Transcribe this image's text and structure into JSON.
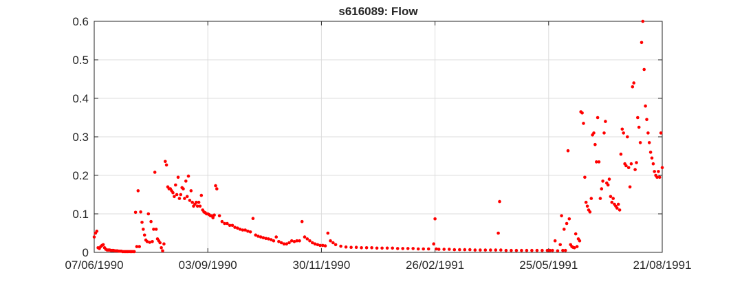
{
  "chart_data": {
    "type": "scatter",
    "title": "s616089: Flow",
    "xlabel": "",
    "ylabel": "",
    "x_axis": "date",
    "xlim": [
      "07/06/1990",
      "21/08/1991"
    ],
    "ylim": [
      0,
      0.6
    ],
    "x_ticks": [
      "07/06/1990",
      "03/09/1990",
      "30/11/1990",
      "26/02/1991",
      "25/05/1991",
      "21/08/1991"
    ],
    "y_ticks": [
      "0",
      "0.1",
      "0.2",
      "0.3",
      "0.4",
      "0.5",
      "0.6"
    ],
    "grid": true,
    "marker_color": "#ff0000",
    "series": [
      {
        "x": [
          "07/06/1990",
          "08/06/1990",
          "09/06/1990",
          "10/06/1990",
          "11/06/1990",
          "12/06/1990",
          "13/06/1990",
          "14/06/1990",
          "15/06/1990",
          "16/06/1990",
          "17/06/1990",
          "18/06/1990",
          "19/06/1990",
          "20/06/1990",
          "21/06/1990",
          "22/06/1990",
          "23/06/1990",
          "24/06/1990",
          "25/06/1990",
          "26/06/1990",
          "27/06/1990",
          "28/06/1990",
          "29/06/1990",
          "30/06/1990",
          "01/07/1990",
          "02/07/1990",
          "03/07/1990",
          "04/07/1990",
          "05/07/1990",
          "06/07/1990",
          "07/07/1990",
          "08/07/1990",
          "09/07/1990",
          "10/07/1990",
          "11/07/1990",
          "12/07/1990",
          "13/07/1990",
          "14/07/1990",
          "15/07/1990",
          "16/07/1990",
          "17/07/1990",
          "18/07/1990",
          "19/07/1990",
          "20/07/1990",
          "21/07/1990",
          "22/07/1990",
          "23/07/1990",
          "24/07/1990",
          "25/07/1990",
          "26/07/1990",
          "27/07/1990",
          "28/07/1990",
          "29/07/1990",
          "30/07/1990",
          "31/07/1990",
          "01/08/1990",
          "02/08/1990",
          "03/08/1990",
          "04/08/1990",
          "05/08/1990",
          "06/08/1990",
          "07/08/1990",
          "08/08/1990",
          "09/08/1990",
          "10/08/1990",
          "11/08/1990",
          "12/08/1990",
          "13/08/1990",
          "14/08/1990",
          "15/08/1990",
          "16/08/1990",
          "17/08/1990",
          "18/08/1990",
          "19/08/1990",
          "20/08/1990",
          "21/08/1990",
          "22/08/1990",
          "23/08/1990",
          "24/08/1990",
          "25/08/1990",
          "26/08/1990",
          "27/08/1990",
          "28/08/1990",
          "29/08/1990",
          "30/08/1990",
          "31/08/1990",
          "01/09/1990",
          "02/09/1990",
          "03/09/1990",
          "04/09/1990",
          "05/09/1990",
          "06/09/1990",
          "07/09/1990",
          "08/09/1990",
          "09/09/1990",
          "10/09/1990",
          "12/09/1990",
          "14/09/1990",
          "16/09/1990",
          "18/09/1990",
          "20/09/1990",
          "22/09/1990",
          "24/09/1990",
          "26/09/1990",
          "28/09/1990",
          "30/09/1990",
          "02/10/1990",
          "04/10/1990",
          "06/10/1990",
          "08/10/1990",
          "10/10/1990",
          "12/10/1990",
          "14/10/1990",
          "16/10/1990",
          "18/10/1990",
          "20/10/1990",
          "22/10/1990",
          "24/10/1990",
          "26/10/1990",
          "28/10/1990",
          "30/10/1990",
          "01/11/1990",
          "03/11/1990",
          "05/11/1990",
          "07/11/1990",
          "09/11/1990",
          "11/11/1990",
          "13/11/1990",
          "15/11/1990",
          "17/11/1990",
          "19/11/1990",
          "21/11/1990",
          "23/11/1990",
          "25/11/1990",
          "27/11/1990",
          "29/11/1990",
          "01/12/1990",
          "03/12/1990",
          "05/12/1990",
          "07/12/1990",
          "09/12/1990",
          "11/12/1990",
          "15/12/1990",
          "19/12/1990",
          "23/12/1990",
          "27/12/1990",
          "31/12/1990",
          "04/01/1991",
          "08/01/1991",
          "12/01/1991",
          "16/01/1991",
          "20/01/1991",
          "24/01/1991",
          "28/01/1991",
          "01/02/1991",
          "05/02/1991",
          "09/02/1991",
          "13/02/1991",
          "17/02/1991",
          "21/02/1991",
          "25/02/1991",
          "26/02/1991",
          "27/02/1991",
          "01/03/1991",
          "05/03/1991",
          "09/03/1991",
          "13/03/1991",
          "17/03/1991",
          "21/03/1991",
          "25/03/1991",
          "29/03/1991",
          "02/04/1991",
          "06/04/1991",
          "10/04/1991",
          "14/04/1991",
          "16/04/1991",
          "17/04/1991",
          "18/04/1991",
          "22/04/1991",
          "26/04/1991",
          "30/04/1991",
          "04/05/1991",
          "08/05/1991",
          "12/05/1991",
          "16/05/1991",
          "20/05/1991",
          "24/05/1991",
          "26/05/1991",
          "28/05/1991",
          "30/05/1991",
          "01/06/1991",
          "03/06/1991",
          "04/06/1991",
          "05/06/1991",
          "06/06/1991",
          "07/06/1991",
          "08/06/1991",
          "09/06/1991",
          "10/06/1991",
          "11/06/1991",
          "12/06/1991",
          "13/06/1991",
          "14/06/1991",
          "15/06/1991",
          "16/06/1991",
          "17/06/1991",
          "18/06/1991",
          "19/06/1991",
          "20/06/1991",
          "21/06/1991",
          "22/06/1991",
          "23/06/1991",
          "24/06/1991",
          "25/06/1991",
          "26/06/1991",
          "27/06/1991",
          "28/06/1991",
          "29/06/1991",
          "30/06/1991",
          "01/07/1991",
          "02/07/1991",
          "03/07/1991",
          "04/07/1991",
          "05/07/1991",
          "06/07/1991",
          "07/07/1991",
          "08/07/1991",
          "09/07/1991",
          "10/07/1991",
          "11/07/1991",
          "12/07/1991",
          "13/07/1991",
          "14/07/1991",
          "15/07/1991",
          "16/07/1991",
          "17/07/1991",
          "18/07/1991",
          "19/07/1991",
          "20/07/1991",
          "21/07/1991",
          "22/07/1991",
          "23/07/1991",
          "24/07/1991",
          "25/07/1991",
          "26/07/1991",
          "27/07/1991",
          "28/07/1991",
          "29/07/1991",
          "30/07/1991",
          "31/07/1991",
          "01/08/1991",
          "02/08/1991",
          "03/08/1991",
          "04/08/1991",
          "05/08/1991",
          "06/08/1991",
          "07/08/1991",
          "08/08/1991",
          "09/08/1991",
          "10/08/1991",
          "11/08/1991",
          "12/08/1991",
          "13/08/1991",
          "14/08/1991",
          "15/08/1991",
          "16/08/1991",
          "17/08/1991",
          "18/08/1991",
          "19/08/1991",
          "20/08/1991",
          "21/08/1991"
        ],
        "y": [
          0.04,
          0.05,
          0.055,
          0.012,
          0.01,
          0.015,
          0.018,
          0.02,
          0.012,
          0.008,
          0.006,
          0.006,
          0.006,
          0.005,
          0.005,
          0.005,
          0.004,
          0.004,
          0.004,
          0.003,
          0.003,
          0.003,
          0.002,
          0.002,
          0.002,
          0.002,
          0.002,
          0.002,
          0.002,
          0.002,
          0.002,
          0.002,
          0.104,
          0.015,
          0.16,
          0.015,
          0.105,
          0.078,
          0.06,
          0.045,
          0.032,
          0.028,
          0.1,
          0.026,
          0.08,
          0.028,
          0.06,
          0.208,
          0.06,
          0.035,
          0.03,
          0.025,
          0.012,
          0.004,
          0.022,
          0.236,
          0.227,
          0.17,
          0.165,
          0.165,
          0.16,
          0.155,
          0.145,
          0.175,
          0.15,
          0.195,
          0.14,
          0.15,
          0.168,
          0.165,
          0.14,
          0.185,
          0.145,
          0.198,
          0.135,
          0.16,
          0.13,
          0.12,
          0.125,
          0.13,
          0.12,
          0.13,
          0.12,
          0.148,
          0.11,
          0.105,
          0.103,
          0.1,
          0.1,
          0.098,
          0.095,
          0.095,
          0.09,
          0.097,
          0.173,
          0.165,
          0.095,
          0.08,
          0.075,
          0.075,
          0.07,
          0.07,
          0.065,
          0.063,
          0.06,
          0.058,
          0.058,
          0.055,
          0.053,
          0.088,
          0.045,
          0.042,
          0.04,
          0.038,
          0.036,
          0.035,
          0.033,
          0.03,
          0.04,
          0.028,
          0.025,
          0.022,
          0.022,
          0.025,
          0.03,
          0.028,
          0.03,
          0.03,
          0.08,
          0.04,
          0.035,
          0.03,
          0.025,
          0.022,
          0.02,
          0.018,
          0.018,
          0.017,
          0.05,
          0.03,
          0.025,
          0.02,
          0.016,
          0.014,
          0.013,
          0.013,
          0.012,
          0.012,
          0.012,
          0.011,
          0.011,
          0.011,
          0.011,
          0.01,
          0.01,
          0.01,
          0.01,
          0.009,
          0.009,
          0.009,
          0.022,
          0.087,
          0.009,
          0.008,
          0.008,
          0.008,
          0.007,
          0.007,
          0.007,
          0.007,
          0.006,
          0.006,
          0.006,
          0.006,
          0.006,
          0.05,
          0.132,
          0.006,
          0.005,
          0.005,
          0.005,
          0.005,
          0.005,
          0.005,
          0.005,
          0.005,
          0.005,
          0.005,
          0.005,
          0.03,
          0.004,
          0.02,
          0.095,
          0.005,
          0.06,
          0.005,
          0.075,
          0.264,
          0.087,
          0.02,
          0.015,
          0.013,
          0.012,
          0.048,
          0.015,
          0.035,
          0.03,
          0.365,
          0.362,
          0.335,
          0.195,
          0.13,
          0.12,
          0.11,
          0.105,
          0.14,
          0.305,
          0.31,
          0.28,
          0.235,
          0.35,
          0.235,
          0.14,
          0.165,
          0.185,
          0.31,
          0.34,
          0.18,
          0.175,
          0.19,
          0.145,
          0.13,
          0.14,
          0.125,
          0.12,
          0.115,
          0.125,
          0.11,
          0.255,
          0.32,
          0.31,
          0.23,
          0.225,
          0.3,
          0.22,
          0.17,
          0.23,
          0.43,
          0.44,
          0.215,
          0.233,
          0.35,
          0.325,
          0.285,
          0.545,
          0.6,
          0.475,
          0.38,
          0.345,
          0.31,
          0.285,
          0.26,
          0.245,
          0.23,
          0.21,
          0.2,
          0.195,
          0.21,
          0.195,
          0.31,
          0.22
        ]
      }
    ]
  }
}
